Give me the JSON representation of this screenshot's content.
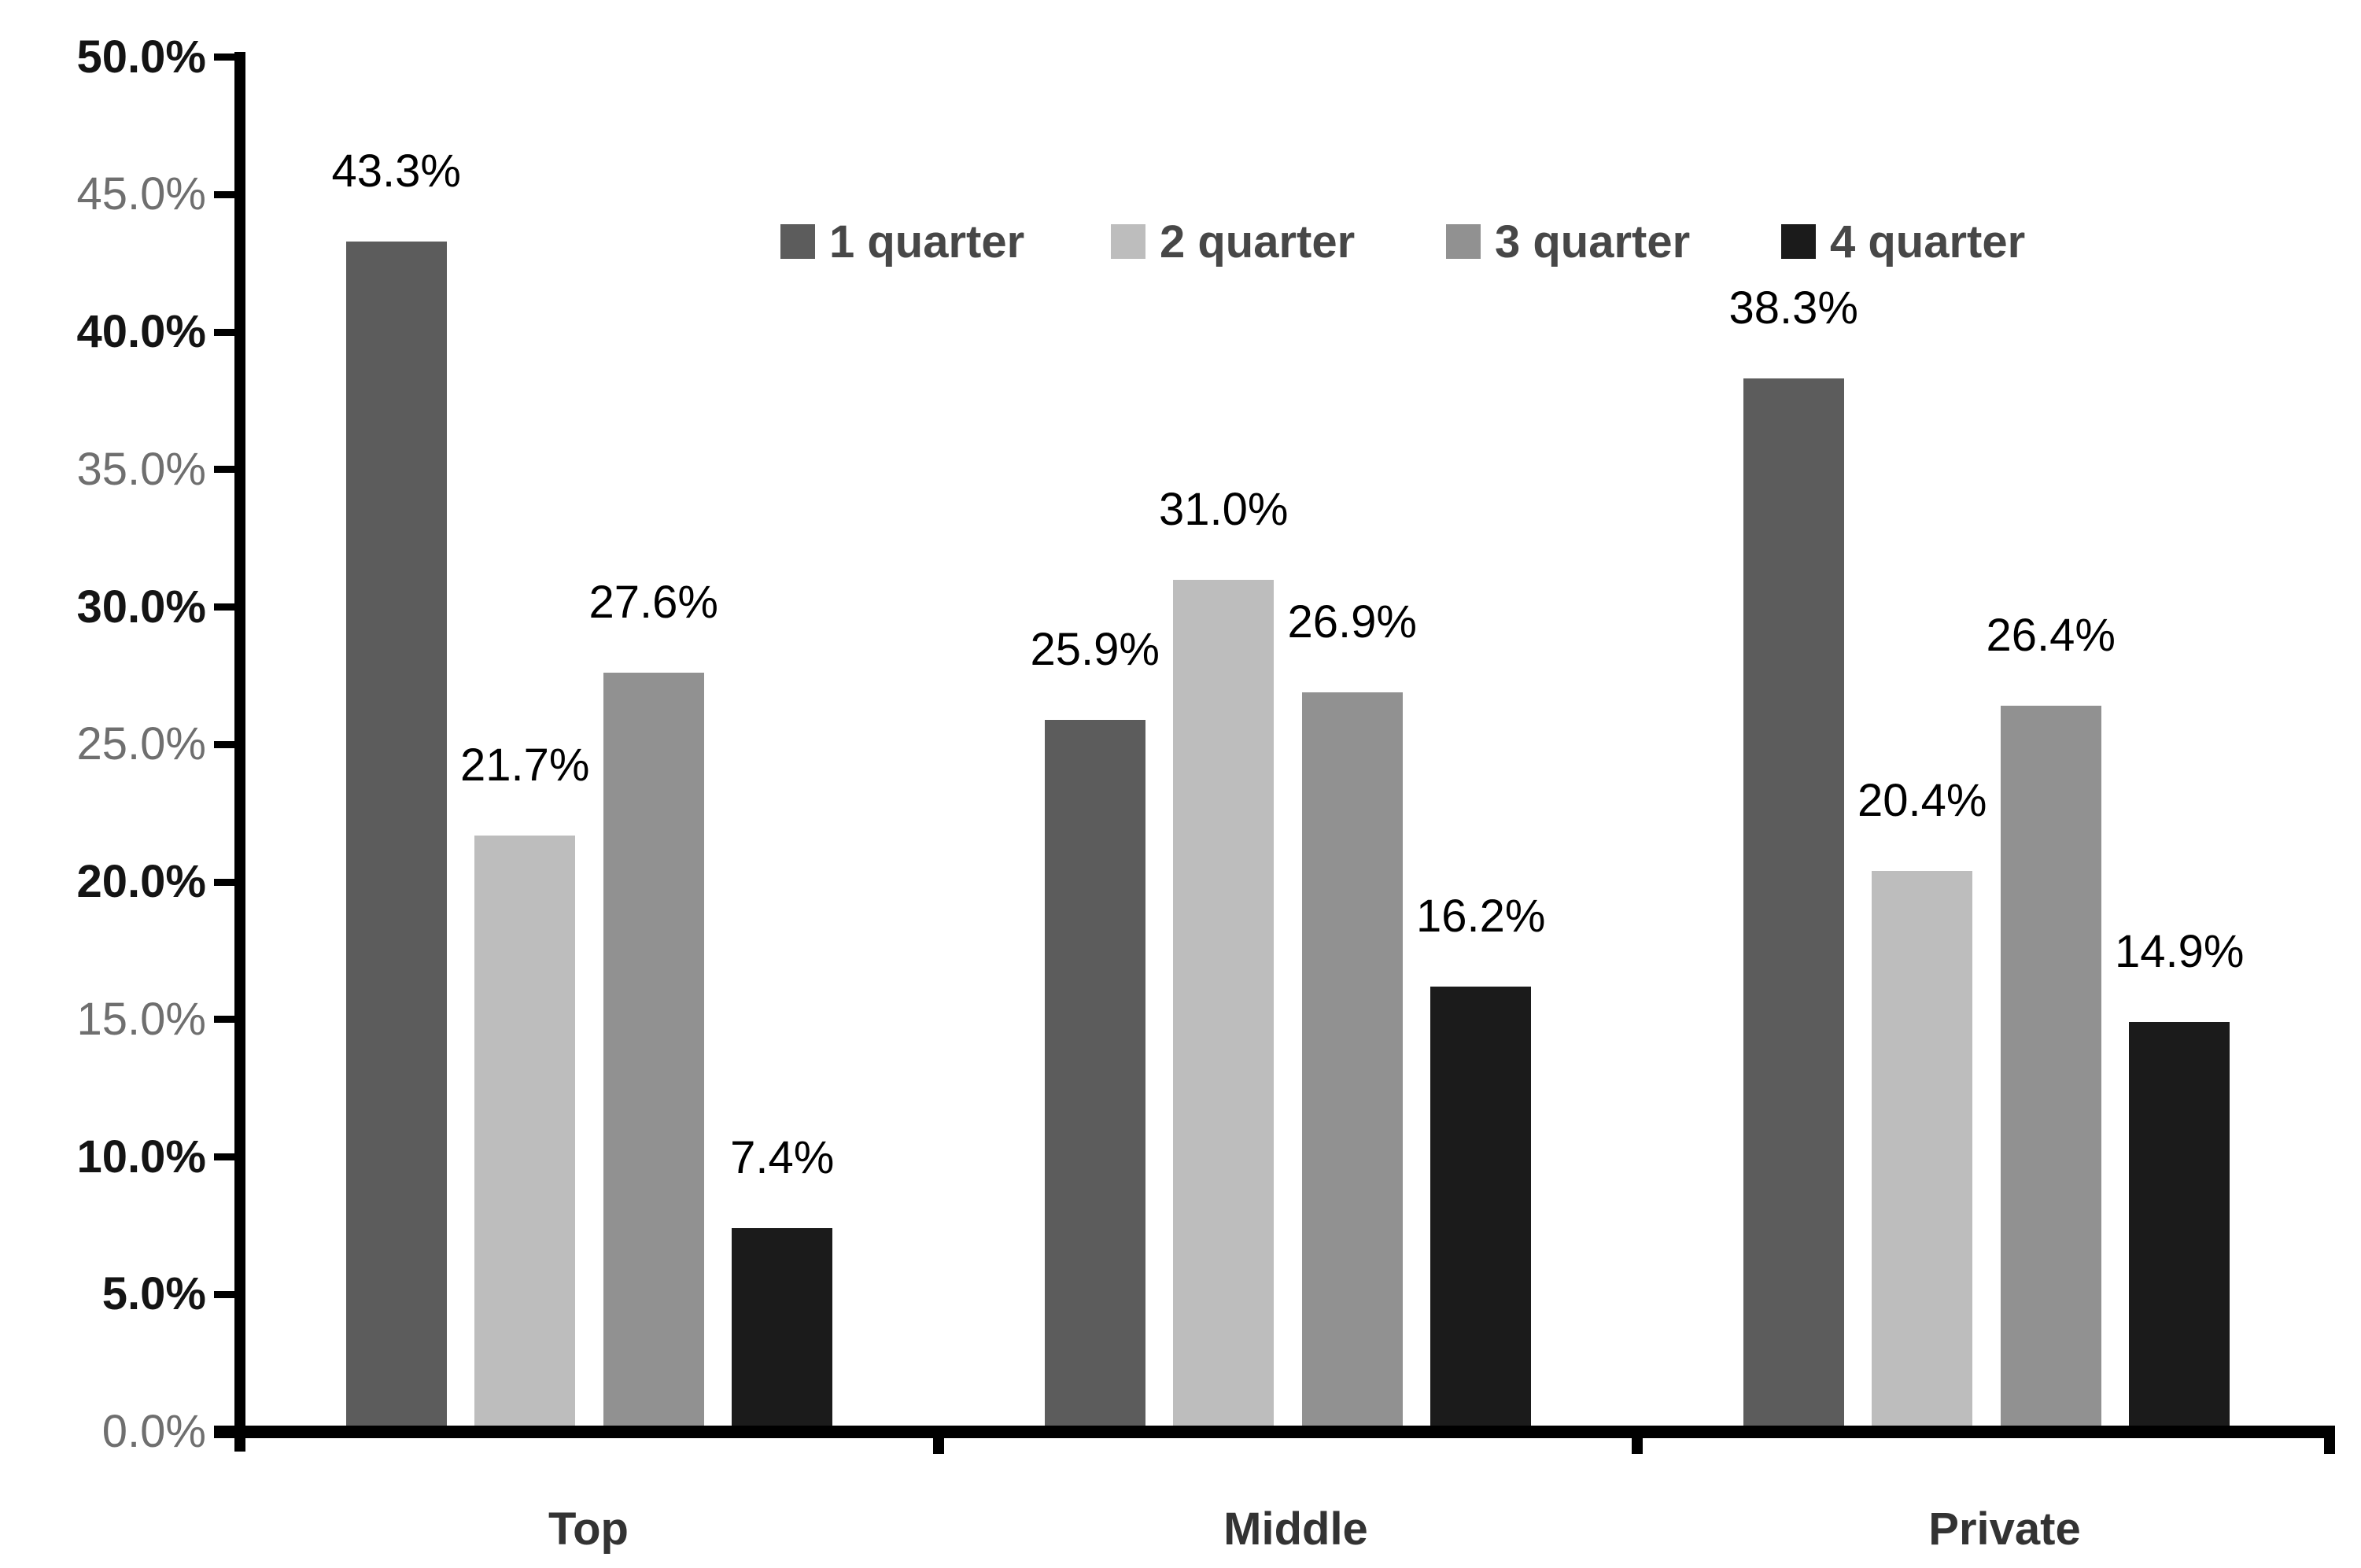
{
  "chart_data": {
    "type": "bar",
    "title": "",
    "categories": [
      "Top",
      "Middle",
      "Private"
    ],
    "series": [
      {
        "name": "1 quarter",
        "color": "#5C5C5C",
        "values": [
          43.3,
          25.9,
          38.3
        ]
      },
      {
        "name": "2 quarter",
        "color": "#BDBDBD",
        "values": [
          21.7,
          31.0,
          20.4
        ]
      },
      {
        "name": "3 quarter",
        "color": "#919191",
        "values": [
          27.6,
          26.9,
          26.4
        ]
      },
      {
        "name": "4 quarter",
        "color": "#1B1B1B",
        "values": [
          7.4,
          16.2,
          14.9
        ]
      }
    ],
    "data_labels": [
      [
        "43.3%",
        "25.9%",
        "38.3%"
      ],
      [
        "21.7%",
        "31.0%",
        "20.4%"
      ],
      [
        "27.6%",
        "26.9%",
        "26.4%"
      ],
      [
        "7.4%",
        "16.2%",
        "14.9%"
      ]
    ],
    "y_axis": {
      "min": 0,
      "max": 50,
      "step": 5,
      "ticks": [
        {
          "value": 50,
          "label": "50.0%",
          "strong": true
        },
        {
          "value": 45,
          "label": "45.0%",
          "strong": false
        },
        {
          "value": 40,
          "label": "40.0%",
          "strong": true
        },
        {
          "value": 35,
          "label": "35.0%",
          "strong": false
        },
        {
          "value": 30,
          "label": "30.0%",
          "strong": true
        },
        {
          "value": 25,
          "label": "25.0%",
          "strong": false
        },
        {
          "value": 20,
          "label": "20.0%",
          "strong": true
        },
        {
          "value": 15,
          "label": "15.0%",
          "strong": false
        },
        {
          "value": 10,
          "label": "10.0%",
          "strong": true
        },
        {
          "value": 5,
          "label": "5.0%",
          "strong": true
        },
        {
          "value": 0,
          "label": "0.0%",
          "strong": false
        }
      ]
    },
    "xlabel": "",
    "ylabel": "",
    "grid": false,
    "legend_position": "top-center",
    "axis_color": "#000000",
    "label_color": "#000000"
  }
}
